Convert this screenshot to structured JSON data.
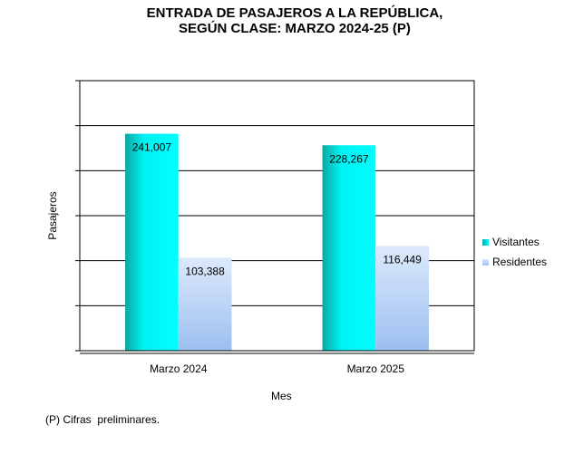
{
  "chart_data": {
    "type": "bar",
    "title": "ENTRADA DE PASAJEROS A LA REPÚBLICA,",
    "subtitle": "SEGÚN CLASE: MARZO  2024-25 (P)",
    "xlabel": "Mes",
    "ylabel": "Pasajeros",
    "categories": [
      "Marzo 2024",
      "Marzo 2025"
    ],
    "series": [
      {
        "name": "Visitantes",
        "values": [
          241007,
          228267
        ],
        "labels": [
          "241,007",
          "228,267"
        ],
        "color": "#00e5e5"
      },
      {
        "name": "Residentes",
        "values": [
          103388,
          116449
        ],
        "labels": [
          "103,388",
          "116,449"
        ],
        "color": "#b7d0f4"
      }
    ],
    "ylim": [
      0,
      300000
    ],
    "grid": true,
    "legend": "right"
  },
  "footnote": "(P) Cifras  preliminares."
}
